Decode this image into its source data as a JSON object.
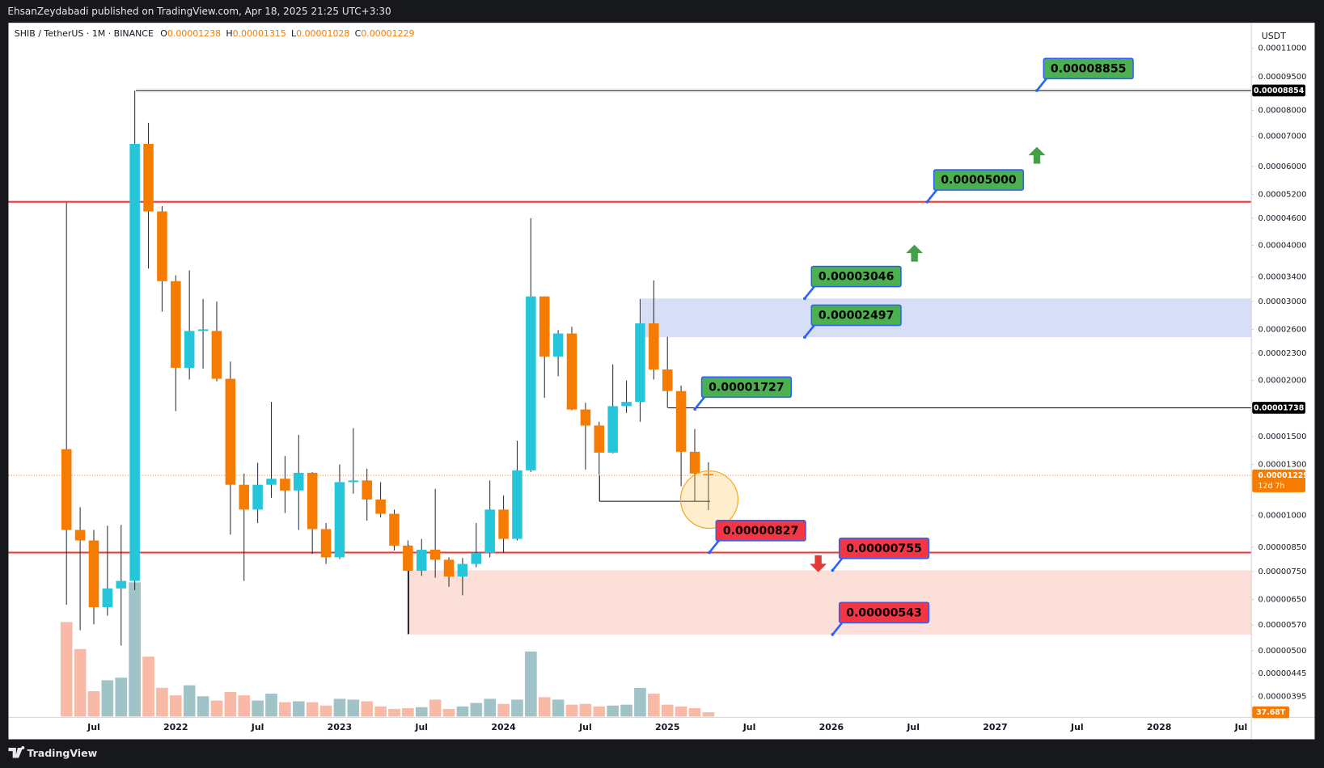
{
  "page": {
    "publisher": "EhsanZeydabadi published on TradingView.com, Apr 18, 2025 21:25 UTC+3:30",
    "footer": "TradingView",
    "legend": {
      "symbol": "SHIB / TetherUS · 1M · BINANCE",
      "ohlc": [
        {
          "key": "O",
          "value": "0.00001238"
        },
        {
          "key": "H",
          "value": "0.00001315"
        },
        {
          "key": "L",
          "value": "0.00001028"
        },
        {
          "key": "C",
          "value": "0.00001229"
        }
      ]
    },
    "currency": "USDT"
  },
  "chart_data": {
    "type": "candlestick",
    "log_scale": true,
    "grid": false,
    "up_color": "#26c6da",
    "down_color": "#f57c00",
    "volume_up_color": "#9fc3c7",
    "volume_down_color": "#f8b9a6",
    "x": [
      "2021-05",
      "2021-06",
      "2021-07",
      "2021-08",
      "2021-09",
      "2021-10",
      "2021-11",
      "2021-12",
      "2022-01",
      "2022-02",
      "2022-03",
      "2022-04",
      "2022-05",
      "2022-06",
      "2022-07",
      "2022-08",
      "2022-09",
      "2022-10",
      "2022-11",
      "2022-12",
      "2023-01",
      "2023-02",
      "2023-03",
      "2023-04",
      "2023-05",
      "2023-06",
      "2023-07",
      "2023-08",
      "2023-09",
      "2023-10",
      "2023-11",
      "2023-12",
      "2024-01",
      "2024-02",
      "2024-03",
      "2024-04",
      "2024-05",
      "2024-06",
      "2024-07",
      "2024-08",
      "2024-09",
      "2024-10",
      "2024-11",
      "2024-12",
      "2025-01",
      "2025-02",
      "2025-03",
      "2025-04"
    ],
    "open": [
      1.406e-05,
      9.29e-06,
      8.8e-06,
      6.25e-06,
      6.88e-06,
      7.15e-06,
      6.734e-05,
      4.761e-05,
      3.329e-05,
      2.134e-05,
      2.578e-05,
      2.578e-05,
      2.017e-05,
      1.171e-05,
      1.031e-05,
      1.171e-05,
      1.208e-05,
      1.137e-05,
      1.245e-05,
      9.33e-06,
      8.07e-06,
      1.187e-05,
      1.197e-05,
      1.086e-05,
      1.009e-05,
      8.57e-06,
      7.53e-06,
      8.39e-06,
      7.97e-06,
      7.31e-06,
      7.8e-06,
      8.25e-06,
      1.031e-05,
      8.87e-06,
      1.261e-05,
      3.078e-05,
      2.261e-05,
      2.545e-05,
      1.723e-05,
      1.587e-05,
      1.381e-05,
      1.753e-05,
      1.792e-05,
      2.681e-05,
      2.116e-05,
      1.894e-05,
      1.387e-05,
      1.238e-05
    ],
    "high": [
      4.98e-05,
      1.044e-05,
      9.29e-06,
      9.49e-06,
      9.53e-06,
      8.854e-05,
      7.504e-05,
      4.893e-05,
      3.43e-05,
      3.519e-05,
      3.039e-05,
      3e-05,
      2.204e-05,
      1.24e-05,
      1.311e-05,
      1.792e-05,
      1.357e-05,
      1.513e-05,
      1.25e-05,
      9.62e-06,
      1.3e-05,
      1.566e-05,
      1.272e-05,
      1.187e-05,
      1.031e-05,
      8.8e-06,
      8.87e-06,
      1.147e-05,
      8.07e-06,
      8.04e-06,
      9.62e-06,
      1.197e-05,
      1.109e-05,
      1.468e-05,
      4.6e-05,
      3.078e-05,
      2.589e-05,
      2.634e-05,
      1.784e-05,
      1.618e-05,
      2.172e-05,
      2e-05,
      3.039e-05,
      3.342e-05,
      2.501e-05,
      1.948e-05,
      1.56e-05,
      1.315e-05
    ],
    "low": [
      6.33e-06,
      5.55e-06,
      5.72e-06,
      5.98e-06,
      5.13e-06,
      6.82e-06,
      3.55e-05,
      2.847e-05,
      1.708e-05,
      2.009e-05,
      2.124e-05,
      1.991e-05,
      9.07e-06,
      7.15e-06,
      9.62e-06,
      1.095e-05,
      1.013e-05,
      9.29e-06,
      8.21e-06,
      7.8e-06,
      8e-06,
      1.119e-05,
      9.74e-06,
      9.91e-06,
      8.36e-06,
      5.43e-06,
      7.34e-06,
      7.27e-06,
      6.94e-06,
      6.64e-06,
      7.67e-06,
      8.07e-06,
      8.25e-06,
      8.8e-06,
      1.25e-05,
      1.83e-05,
      2.044e-05,
      1.716e-05,
      1.266e-05,
      1.234e-05,
      1.376e-05,
      1.693e-05,
      1.618e-05,
      2.009e-05,
      1.738e-05,
      1.162e-05,
      1.076e-05,
      1.028e-05
    ],
    "close": [
      9.29e-06,
      8.8e-06,
      6.25e-06,
      6.88e-06,
      7.15e-06,
      6.734e-05,
      4.761e-05,
      3.329e-05,
      2.134e-05,
      2.578e-05,
      2.6e-05,
      2.017e-05,
      1.171e-05,
      1.031e-05,
      1.171e-05,
      1.208e-05,
      1.137e-05,
      1.245e-05,
      9.33e-06,
      8.07e-06,
      1.187e-05,
      1.197e-05,
      1.086e-05,
      1.009e-05,
      8.57e-06,
      7.53e-06,
      8.39e-06,
      7.97e-06,
      7.31e-06,
      7.8e-06,
      8.25e-06,
      1.031e-05,
      8.87e-06,
      1.261e-05,
      3.078e-05,
      2.261e-05,
      2.545e-05,
      1.723e-05,
      1.587e-05,
      1.381e-05,
      1.753e-05,
      1.792e-05,
      2.681e-05,
      2.116e-05,
      1.894e-05,
      1.387e-05,
      1.24e-05,
      1.229e-05
    ],
    "volume": [
      844,
      603,
      226,
      324,
      347,
      1199,
      535,
      256,
      189,
      279,
      181,
      143,
      219,
      189,
      143,
      204,
      128,
      136,
      128,
      98,
      158,
      151,
      136,
      90,
      68,
      75,
      83,
      151,
      68,
      90,
      121,
      158,
      113,
      151,
      581,
      173,
      151,
      106,
      113,
      90,
      98,
      106,
      256,
      204,
      106,
      90,
      75,
      37.68
    ],
    "last_volume": {
      "value": 37.68,
      "label": "37.68T"
    },
    "xlim": [
      "2021-01",
      "2028-08"
    ],
    "xticks": [
      {
        "value": "2021-07",
        "label": "Jul"
      },
      {
        "value": "2022-01",
        "label": "2022"
      },
      {
        "value": "2022-07",
        "label": "Jul"
      },
      {
        "value": "2023-01",
        "label": "2023"
      },
      {
        "value": "2023-07",
        "label": "Jul"
      },
      {
        "value": "2024-01",
        "label": "2024"
      },
      {
        "value": "2024-07",
        "label": "Jul"
      },
      {
        "value": "2025-01",
        "label": "2025"
      },
      {
        "value": "2025-07",
        "label": "Jul"
      },
      {
        "value": "2026-01",
        "label": "2026"
      },
      {
        "value": "2026-07",
        "label": "Jul"
      },
      {
        "value": "2027-01",
        "label": "2027"
      },
      {
        "value": "2027-07",
        "label": "Jul"
      },
      {
        "value": "2028-01",
        "label": "2028"
      },
      {
        "value": "2028-07",
        "label": "Jul"
      }
    ],
    "ylim": [
      3.55e-06,
      0.0001248
    ],
    "yticks": [
      {
        "value": 0.00011,
        "label": "0.00011000"
      },
      {
        "value": 9.5e-05,
        "label": "0.00009500"
      },
      {
        "value": 8e-05,
        "label": "0.00008000"
      },
      {
        "value": 7e-05,
        "label": "0.00007000"
      },
      {
        "value": 6e-05,
        "label": "0.00006000"
      },
      {
        "value": 5.2e-05,
        "label": "0.00005200"
      },
      {
        "value": 4.6e-05,
        "label": "0.00004600"
      },
      {
        "value": 4e-05,
        "label": "0.00004000"
      },
      {
        "value": 3.4e-05,
        "label": "0.00003400"
      },
      {
        "value": 3e-05,
        "label": "0.00003000"
      },
      {
        "value": 2.6e-05,
        "label": "0.00002600"
      },
      {
        "value": 2.3e-05,
        "label": "0.00002300"
      },
      {
        "value": 2e-05,
        "label": "0.00002000"
      },
      {
        "value": 1.5e-05,
        "label": "0.00001500"
      },
      {
        "value": 1.3e-05,
        "label": "0.00001300"
      },
      {
        "value": 1e-05,
        "label": "0.00001000"
      },
      {
        "value": 8.5e-06,
        "label": "0.00000850"
      },
      {
        "value": 7.5e-06,
        "label": "0.00000750"
      },
      {
        "value": 6.5e-06,
        "label": "0.00000650"
      },
      {
        "value": 5.7e-06,
        "label": "0.00000570"
      },
      {
        "value": 5e-06,
        "label": "0.00000500"
      },
      {
        "value": 4.45e-06,
        "label": "0.00000445"
      },
      {
        "value": 3.95e-06,
        "label": "0.00000395"
      }
    ],
    "price_labels": [
      {
        "value": 8.854e-05,
        "label": "0.00008854"
      },
      {
        "value": 1.738e-05,
        "label": "0.00001738"
      }
    ],
    "last_price": {
      "value": 1.229e-05,
      "label": "0.00001229",
      "countdown": "12d 7h"
    },
    "levels": [
      {
        "value": 5e-05,
        "color": "#e53935"
      },
      {
        "value": 8.27e-06,
        "color": "#e53935"
      },
      {
        "value": 8.854e-05,
        "color": "#000000"
      },
      {
        "value": 1.738e-05,
        "color": "#000000"
      }
    ],
    "zones": [
      {
        "from": 2.497e-05,
        "to": 3.046e-05,
        "color": "#d3dbf6"
      },
      {
        "from": 5.43e-06,
        "to": 7.55e-06,
        "color": "#fcdbd4"
      }
    ],
    "annotations": [
      {
        "value": 8.855e-05,
        "label": "0.00008855",
        "color": "#4caf50"
      },
      {
        "value": 5e-05,
        "label": "0.00005000",
        "color": "#4caf50"
      },
      {
        "value": 3.046e-05,
        "label": "0.00003046",
        "color": "#4caf50"
      },
      {
        "value": 2.497e-05,
        "label": "0.00002497",
        "color": "#4caf50"
      },
      {
        "value": 1.727e-05,
        "label": "0.00001727",
        "color": "#4caf50"
      },
      {
        "value": 8.27e-06,
        "label": "0.00000827",
        "color": "#f23645"
      },
      {
        "value": 7.55e-06,
        "label": "0.00000755",
        "color": "#f23645"
      },
      {
        "value": 5.43e-06,
        "label": "0.00000543",
        "color": "#f23645"
      }
    ]
  }
}
